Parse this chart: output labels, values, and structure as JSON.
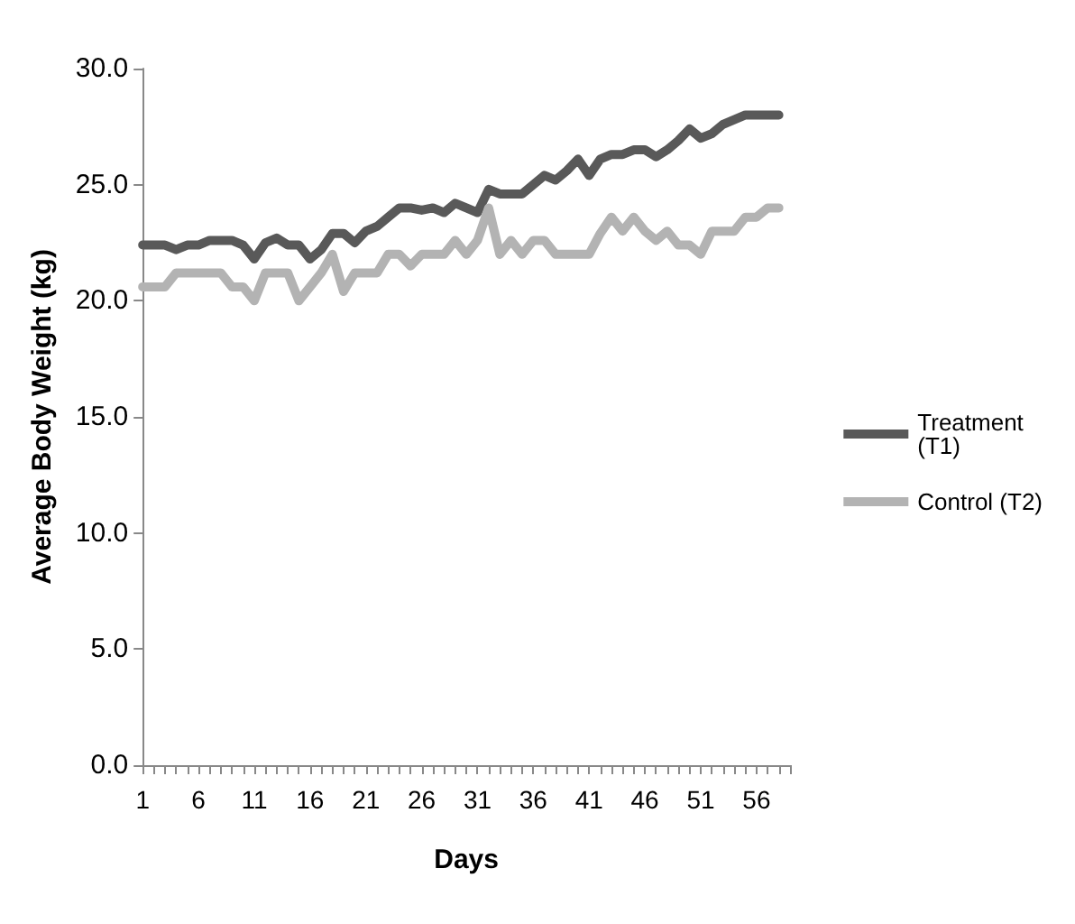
{
  "chart_data": {
    "type": "line",
    "xlabel": "Days",
    "ylabel": "Average Body Weight (kg)",
    "x": [
      1,
      2,
      3,
      4,
      5,
      6,
      7,
      8,
      9,
      10,
      11,
      12,
      13,
      14,
      15,
      16,
      17,
      18,
      19,
      20,
      21,
      22,
      23,
      24,
      25,
      26,
      27,
      28,
      29,
      30,
      31,
      32,
      33,
      34,
      35,
      36,
      37,
      38,
      39,
      40,
      41,
      42,
      43,
      44,
      45,
      46,
      47,
      48,
      49,
      50,
      51,
      52,
      53,
      54,
      55,
      56,
      57,
      58
    ],
    "series": [
      {
        "name": "Treatment (T1)",
        "color": "#595959",
        "values": [
          22.4,
          22.4,
          22.4,
          22.2,
          22.4,
          22.4,
          22.6,
          22.6,
          22.6,
          22.4,
          21.8,
          22.5,
          22.7,
          22.4,
          22.4,
          21.8,
          22.2,
          22.9,
          22.9,
          22.5,
          23.0,
          23.2,
          23.6,
          24.0,
          24.0,
          23.9,
          24.0,
          23.8,
          24.2,
          24.0,
          23.8,
          24.8,
          24.6,
          24.6,
          24.6,
          25.0,
          25.4,
          25.2,
          25.6,
          26.1,
          25.4,
          26.1,
          26.3,
          26.3,
          26.5,
          26.5,
          26.2,
          26.5,
          26.9,
          27.4,
          27.0,
          27.2,
          27.6,
          27.8,
          28.0,
          28.0,
          28.0,
          28.0
        ]
      },
      {
        "name": "Control (T2)",
        "color": "#b3b3b3",
        "values": [
          20.6,
          20.6,
          20.6,
          21.2,
          21.2,
          21.2,
          21.2,
          21.2,
          20.6,
          20.6,
          20.0,
          21.2,
          21.2,
          21.2,
          20.0,
          20.6,
          21.2,
          22.0,
          20.4,
          21.2,
          21.2,
          21.2,
          22.0,
          22.0,
          21.5,
          22.0,
          22.0,
          22.0,
          22.6,
          22.0,
          22.6,
          24.0,
          22.0,
          22.6,
          22.0,
          22.6,
          22.6,
          22.0,
          22.0,
          22.0,
          22.0,
          22.9,
          23.6,
          23.0,
          23.6,
          23.0,
          22.6,
          23.0,
          22.4,
          22.4,
          22.0,
          23.0,
          23.0,
          23.0,
          23.6,
          23.6,
          24.0,
          24.0
        ]
      }
    ],
    "xlim": [
      1,
      59
    ],
    "xticks": [
      1,
      {
        "value": 2,
        "label": null
      },
      {
        "value": 3,
        "label": null
      },
      {
        "value": 4,
        "label": null
      },
      {
        "value": 5,
        "label": null
      },
      6,
      {
        "value": 7,
        "label": null
      },
      {
        "value": 8,
        "label": null
      },
      {
        "value": 9,
        "label": null
      },
      {
        "value": 10,
        "label": null
      },
      11,
      {
        "value": 12,
        "label": null
      },
      {
        "value": 13,
        "label": null
      },
      {
        "value": 14,
        "label": null
      },
      {
        "value": 15,
        "label": null
      },
      16,
      {
        "value": 17,
        "label": null
      },
      {
        "value": 18,
        "label": null
      },
      {
        "value": 19,
        "label": null
      },
      {
        "value": 20,
        "label": null
      },
      21,
      {
        "value": 22,
        "label": null
      },
      {
        "value": 23,
        "label": null
      },
      {
        "value": 24,
        "label": null
      },
      {
        "value": 25,
        "label": null
      },
      26,
      {
        "value": 27,
        "label": null
      },
      {
        "value": 28,
        "label": null
      },
      {
        "value": 29,
        "label": null
      },
      {
        "value": 30,
        "label": null
      },
      31,
      {
        "value": 32,
        "label": null
      },
      {
        "value": 33,
        "label": null
      },
      {
        "value": 34,
        "label": null
      },
      {
        "value": 35,
        "label": null
      },
      36,
      {
        "value": 37,
        "label": null
      },
      {
        "value": 38,
        "label": null
      },
      {
        "value": 39,
        "label": null
      },
      {
        "value": 40,
        "label": null
      },
      41,
      {
        "value": 42,
        "label": null
      },
      {
        "value": 43,
        "label": null
      },
      {
        "value": 44,
        "label": null
      },
      {
        "value": 45,
        "label": null
      },
      46,
      {
        "value": 47,
        "label": null
      },
      {
        "value": 48,
        "label": null
      },
      {
        "value": 49,
        "label": null
      },
      {
        "value": 50,
        "label": null
      },
      51,
      {
        "value": 52,
        "label": null
      },
      {
        "value": 53,
        "label": null
      },
      {
        "value": 54,
        "label": null
      },
      {
        "value": 55,
        "label": null
      },
      56,
      {
        "value": 57,
        "label": null
      },
      {
        "value": 58,
        "label": null
      },
      {
        "value": 59,
        "label": null
      }
    ],
    "ylim": [
      0,
      30
    ],
    "yticks": [
      {
        "value": 0,
        "label": "0.0"
      },
      {
        "value": 5,
        "label": "5.0"
      },
      {
        "value": 10,
        "label": "10.0"
      },
      {
        "value": 15,
        "label": "15.0"
      },
      {
        "value": 20,
        "label": "20.0"
      },
      {
        "value": 25,
        "label": "25.0"
      },
      {
        "value": 30,
        "label": "30.0"
      }
    ],
    "grid": false,
    "legend": "right",
    "marker": "none",
    "line_style": "solid"
  }
}
